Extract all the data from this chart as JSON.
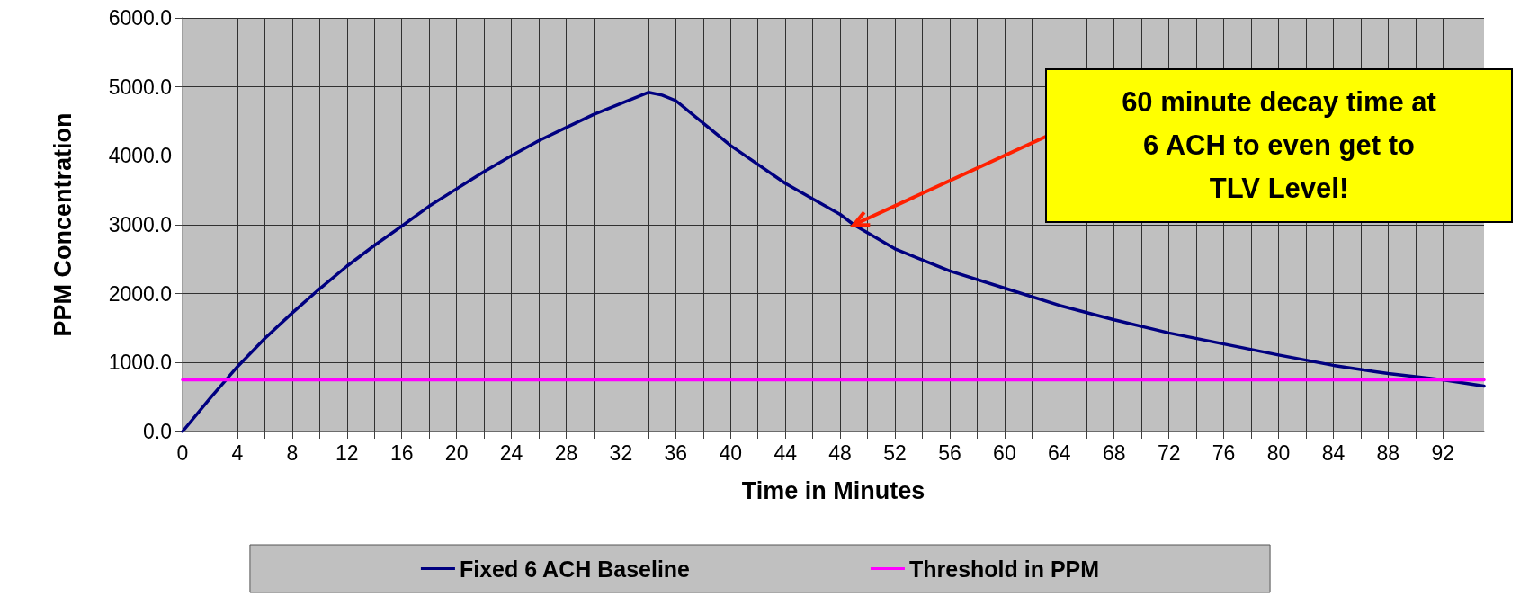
{
  "chart_data": {
    "type": "line",
    "xlabel": "Time in Minutes",
    "ylabel": "PPM Concentration",
    "x": [
      0,
      2,
      4,
      6,
      8,
      10,
      12,
      14,
      16,
      18,
      20,
      22,
      24,
      26,
      28,
      30,
      32,
      34,
      35,
      36,
      40,
      44,
      48,
      49,
      52,
      56,
      60,
      64,
      68,
      72,
      76,
      80,
      84,
      88,
      92,
      95
    ],
    "series": [
      {
        "name": "Fixed 6 ACH Baseline",
        "color": "#000080",
        "values": [
          0,
          480,
          940,
          1350,
          1720,
          2070,
          2400,
          2700,
          2980,
          3270,
          3520,
          3770,
          4000,
          4220,
          4410,
          4600,
          4760,
          4920,
          4880,
          4800,
          4150,
          3600,
          3150,
          3000,
          2650,
          2330,
          2080,
          1830,
          1620,
          1430,
          1270,
          1110,
          960,
          840,
          750,
          660
        ]
      },
      {
        "name": "Threshold in PPM",
        "color": "#ff00ff",
        "x": [
          0,
          95
        ],
        "values": [
          750,
          750
        ]
      }
    ],
    "xlim": [
      0,
      95
    ],
    "xticks": [
      0,
      {
        "value": 2,
        "label": null
      },
      4,
      {
        "value": 6,
        "label": null
      },
      8,
      {
        "value": 10,
        "label": null
      },
      12,
      {
        "value": 14,
        "label": null
      },
      16,
      {
        "value": 18,
        "label": null
      },
      20,
      {
        "value": 22,
        "label": null
      },
      24,
      {
        "value": 26,
        "label": null
      },
      28,
      {
        "value": 30,
        "label": null
      },
      32,
      {
        "value": 34,
        "label": null
      },
      36,
      {
        "value": 38,
        "label": null
      },
      40,
      {
        "value": 42,
        "label": null
      },
      44,
      {
        "value": 46,
        "label": null
      },
      48,
      {
        "value": 50,
        "label": null
      },
      52,
      {
        "value": 54,
        "label": null
      },
      56,
      {
        "value": 58,
        "label": null
      },
      60,
      {
        "value": 62,
        "label": null
      },
      64,
      {
        "value": 66,
        "label": null
      },
      68,
      {
        "value": 70,
        "label": null
      },
      72,
      {
        "value": 74,
        "label": null
      },
      76,
      {
        "value": 78,
        "label": null
      },
      80,
      {
        "value": 82,
        "label": null
      },
      84,
      {
        "value": 86,
        "label": null
      },
      88,
      {
        "value": 90,
        "label": null
      },
      92,
      {
        "value": 94,
        "label": null
      }
    ],
    "ylim": [
      0,
      6000
    ],
    "yticks": [
      {
        "value": 0,
        "label": "0.0"
      },
      {
        "value": 1000,
        "label": "1000.0"
      },
      {
        "value": 2000,
        "label": "2000.0"
      },
      {
        "value": 3000,
        "label": "3000.0"
      },
      {
        "value": 4000,
        "label": "4000.0"
      },
      {
        "value": 5000,
        "label": "5000.0"
      },
      {
        "value": 6000,
        "label": "6000.0"
      }
    ],
    "grid": true,
    "legend": "bottom",
    "marker": "none",
    "line_style": "solid",
    "annotations": [
      {
        "text": "60 minute decay time at\n6 ACH to even get to\nTLV Level!",
        "x": 49,
        "y": 3000
      }
    ]
  }
}
